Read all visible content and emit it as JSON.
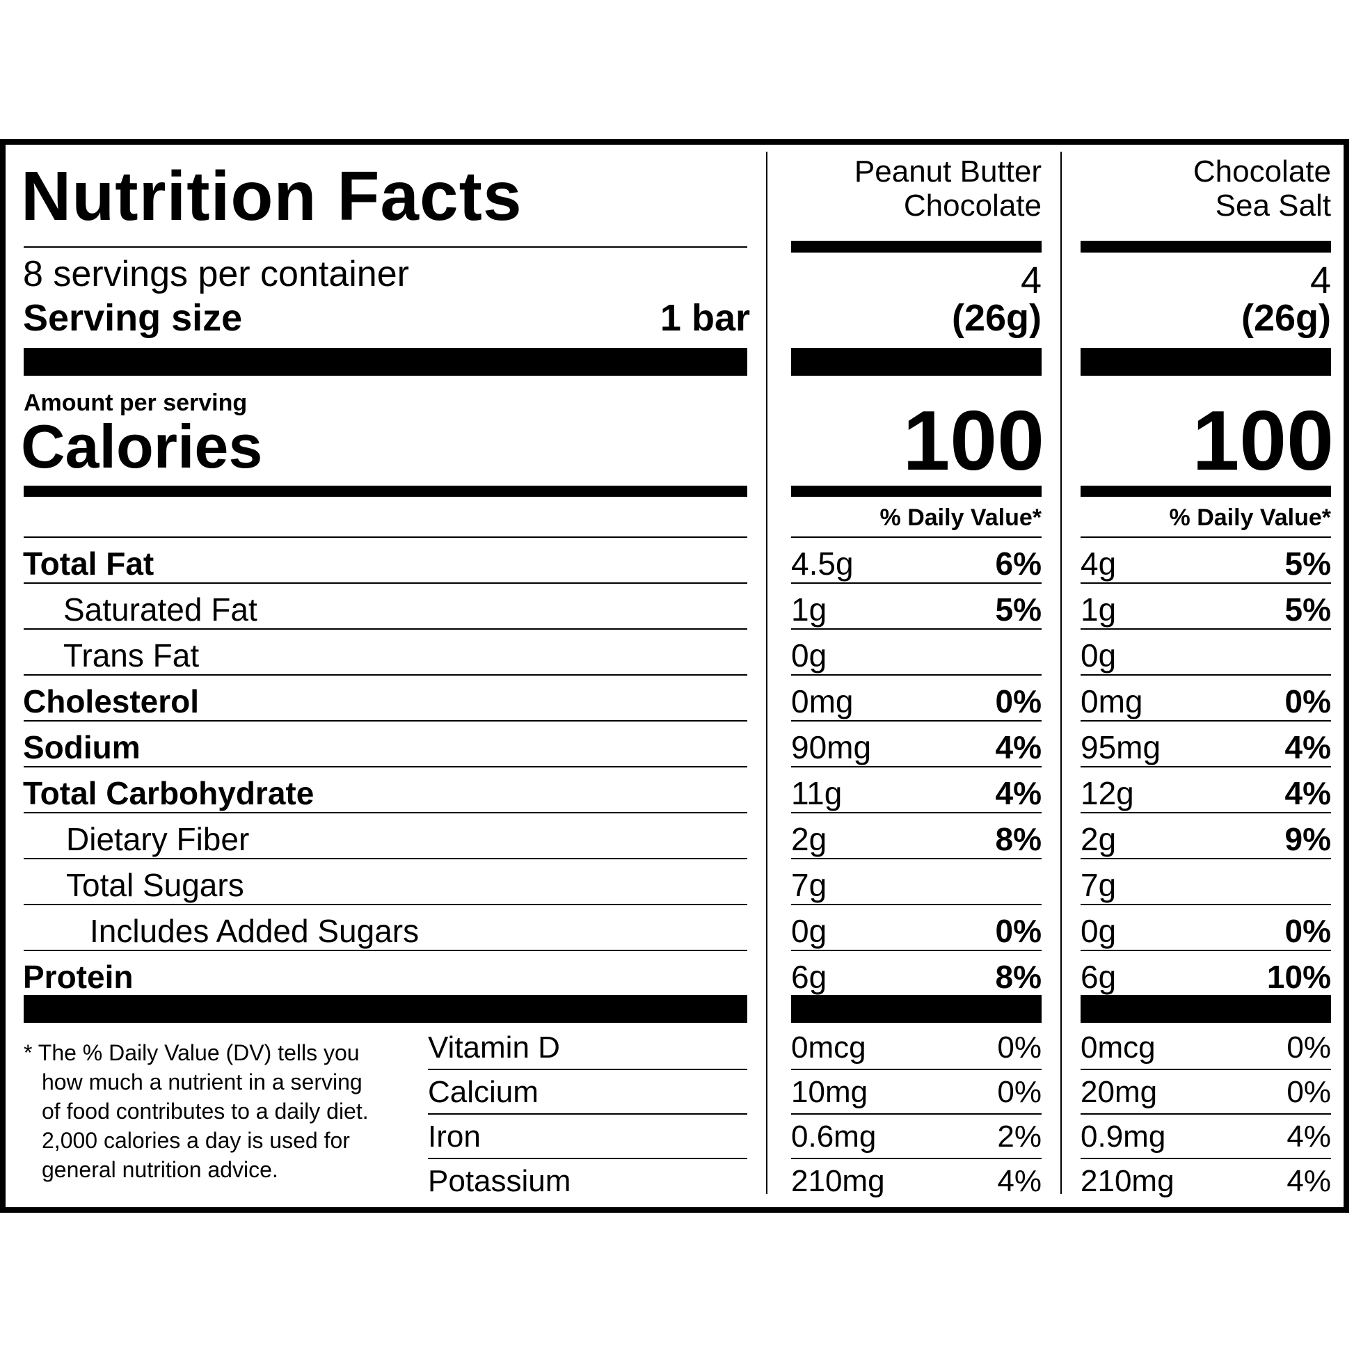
{
  "label": {
    "title": "Nutrition Facts",
    "servings_per_container": "8 servings per container",
    "serving_size_label": "Serving size",
    "serving_size_value": "1 bar",
    "amount_per_serving": "Amount per serving",
    "calories_label": "Calories",
    "dv_header": "% Daily Value*"
  },
  "products": [
    {
      "name_line1": "Peanut Butter",
      "name_line2": "Chocolate",
      "servings": "4",
      "serving_weight": "(26g)",
      "calories": "100"
    },
    {
      "name_line1": "Chocolate",
      "name_line2": "Sea Salt",
      "servings": "4",
      "serving_weight": "(26g)",
      "calories": "100"
    }
  ],
  "nutrients": [
    {
      "label": "Total Fat",
      "p1_amount": "4.5g",
      "p1_dv": "6%",
      "p2_amount": "4g",
      "p2_dv": "5%"
    },
    {
      "label": "Saturated Fat",
      "p1_amount": "1g",
      "p1_dv": "5%",
      "p2_amount": "1g",
      "p2_dv": "5%"
    },
    {
      "label": "Trans Fat",
      "p1_amount": "0g",
      "p1_dv": "",
      "p2_amount": "0g",
      "p2_dv": ""
    },
    {
      "label": "Cholesterol",
      "p1_amount": "0mg",
      "p1_dv": "0%",
      "p2_amount": "0mg",
      "p2_dv": "0%"
    },
    {
      "label": "Sodium",
      "p1_amount": "90mg",
      "p1_dv": "4%",
      "p2_amount": "95mg",
      "p2_dv": "4%"
    },
    {
      "label": "Total Carbohydrate",
      "p1_amount": "11g",
      "p1_dv": "4%",
      "p2_amount": "12g",
      "p2_dv": "4%"
    },
    {
      "label": "Dietary Fiber",
      "p1_amount": "2g",
      "p1_dv": "8%",
      "p2_amount": "2g",
      "p2_dv": "9%"
    },
    {
      "label": "Total Sugars",
      "p1_amount": "7g",
      "p1_dv": "",
      "p2_amount": "7g",
      "p2_dv": ""
    },
    {
      "label": "Includes Added Sugars",
      "p1_amount": "0g",
      "p1_dv": "0%",
      "p2_amount": "0g",
      "p2_dv": "0%"
    },
    {
      "label": "Protein",
      "p1_amount": "6g",
      "p1_dv": "8%",
      "p2_amount": "6g",
      "p2_dv": "10%"
    }
  ],
  "vitamins": [
    {
      "label": "Vitamin D",
      "p1_amount": "0mcg",
      "p1_dv": "0%",
      "p2_amount": "0mcg",
      "p2_dv": "0%"
    },
    {
      "label": "Calcium",
      "p1_amount": "10mg",
      "p1_dv": "0%",
      "p2_amount": "20mg",
      "p2_dv": "0%"
    },
    {
      "label": "Iron",
      "p1_amount": "0.6mg",
      "p1_dv": "2%",
      "p2_amount": "0.9mg",
      "p2_dv": "4%"
    },
    {
      "label": "Potassium",
      "p1_amount": "210mg",
      "p1_dv": "4%",
      "p2_amount": "210mg",
      "p2_dv": "4%"
    }
  ],
  "footnote": {
    "line1": "* The % Daily Value (DV) tells you",
    "line2": "how much a nutrient in a serving",
    "line3": "of food contributes to a daily diet.",
    "line4": "2,000 calories a day is used for",
    "line5": "general nutrition advice."
  }
}
